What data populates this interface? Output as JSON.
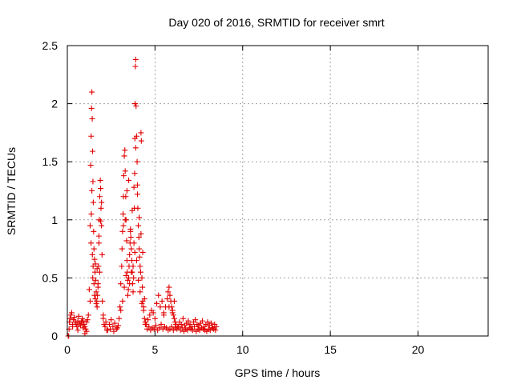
{
  "chart_data": {
    "type": "scatter",
    "title": "Day 020 of 2016, SRMTID for receiver smrt",
    "xlabel": "GPS time / hours",
    "ylabel": "SRMTID / TECUs",
    "xlim": [
      0,
      24
    ],
    "ylim": [
      0,
      2.5
    ],
    "xticks": [
      0,
      5,
      10,
      15,
      20
    ],
    "yticks": [
      0,
      0.5,
      1,
      1.5,
      2,
      2.5
    ],
    "xtick_labels": [
      "0",
      "5",
      "10",
      "15",
      "20"
    ],
    "ytick_labels": [
      "0",
      "0.5",
      "1",
      "1.5",
      "2",
      "2.5"
    ],
    "grid": true,
    "marker": "+",
    "color": "#e00000",
    "series": [
      {
        "name": "smrt",
        "x": [
          0.05,
          0.08,
          0.12,
          0.15,
          0.2,
          0.25,
          0.3,
          0.35,
          0.4,
          0.45,
          0.5,
          0.55,
          0.6,
          0.65,
          0.7,
          0.75,
          0.8,
          0.85,
          0.9,
          0.95,
          1.0,
          1.05,
          1.1,
          1.15,
          1.2,
          1.25,
          1.3,
          1.33,
          1.36,
          1.38,
          1.4,
          1.42,
          1.44,
          1.46,
          1.48,
          1.5,
          1.52,
          1.55,
          1.58,
          1.6,
          1.62,
          1.65,
          1.68,
          1.7,
          1.72,
          1.75,
          1.78,
          1.8,
          1.82,
          1.85,
          1.88,
          1.9,
          1.92,
          1.95,
          1.98,
          2.0,
          2.05,
          2.1,
          2.15,
          2.2,
          2.3,
          2.4,
          2.5,
          2.6,
          2.7,
          2.8,
          2.9,
          2.95,
          3.0,
          3.05,
          3.1,
          3.12,
          3.15,
          3.18,
          3.2,
          3.22,
          3.25,
          3.28,
          3.3,
          3.33,
          3.35,
          3.38,
          3.4,
          3.42,
          3.45,
          3.48,
          3.5,
          3.52,
          3.55,
          3.58,
          3.6,
          3.62,
          3.65,
          3.68,
          3.7,
          3.72,
          3.75,
          3.78,
          3.8,
          3.82,
          3.84,
          3.85,
          3.86,
          3.88,
          3.9,
          3.92,
          3.95,
          3.98,
          4.0,
          4.02,
          4.05,
          4.08,
          4.1,
          4.12,
          4.15,
          4.18,
          4.2,
          4.22,
          4.25,
          4.28,
          4.3,
          4.35,
          4.4,
          4.45,
          4.5,
          4.6,
          4.7,
          4.8,
          4.9,
          5.0,
          5.1,
          5.2,
          5.3,
          5.4,
          5.5,
          5.6,
          5.7,
          5.75,
          5.8,
          5.85,
          5.9,
          5.95,
          6.0,
          6.05,
          6.1,
          6.15,
          6.2,
          6.3,
          6.4,
          6.5,
          6.6,
          6.7,
          6.8,
          6.9,
          7.0,
          7.1,
          7.2,
          7.3,
          7.4,
          7.5,
          7.6,
          7.7,
          7.8,
          7.9,
          8.0,
          8.1,
          8.2,
          8.3,
          8.4,
          8.5,
          0.1,
          0.3,
          0.6,
          0.9,
          1.0,
          1.1,
          1.3,
          1.45,
          1.55,
          1.65,
          1.75,
          1.85,
          2.05,
          2.25,
          2.45,
          2.65,
          2.85,
          3.05,
          3.15,
          3.25,
          3.35,
          3.45,
          3.55,
          3.65,
          3.75,
          3.85,
          3.95,
          4.05,
          4.15,
          4.25,
          4.35,
          4.45,
          4.55,
          4.65,
          4.75,
          4.85,
          4.95,
          5.05,
          5.15,
          5.25,
          5.35,
          5.45,
          5.55,
          5.65,
          5.75,
          5.85,
          5.95,
          6.05,
          6.15,
          6.25,
          6.35,
          6.45,
          6.55,
          6.65,
          6.75,
          6.85,
          6.95,
          7.05,
          7.15,
          7.25,
          7.35,
          7.45,
          7.55,
          7.65,
          7.75,
          7.85,
          7.95,
          8.05,
          8.15,
          8.25,
          8.35,
          8.45,
          1.35,
          1.37,
          1.4,
          1.43,
          1.47,
          1.52,
          1.6,
          1.7,
          1.8,
          1.9,
          1.95,
          3.2,
          3.3,
          3.4,
          3.5,
          3.6,
          3.7,
          3.8,
          3.9,
          4.0,
          4.1,
          4.2,
          4.3,
          4.4,
          5.5,
          5.8,
          6.0,
          6.1
        ],
        "y": [
          0.0,
          0.0,
          0.12,
          0.15,
          0.18,
          0.2,
          0.1,
          0.14,
          0.16,
          0.12,
          0.1,
          0.08,
          0.13,
          0.17,
          0.11,
          0.09,
          0.12,
          0.15,
          0.13,
          0.1,
          0.08,
          0.06,
          0.12,
          0.14,
          0.18,
          0.4,
          0.95,
          1.47,
          1.72,
          1.96,
          2.1,
          1.87,
          1.59,
          1.33,
          1.15,
          0.9,
          0.75,
          0.66,
          0.55,
          0.62,
          0.48,
          0.38,
          0.3,
          0.25,
          0.35,
          0.45,
          0.6,
          0.8,
          1.0,
          1.2,
          1.34,
          1.27,
          1.1,
          0.95,
          0.7,
          0.3,
          0.18,
          0.1,
          0.08,
          0.12,
          0.05,
          0.1,
          0.14,
          0.08,
          0.11,
          0.06,
          0.09,
          0.15,
          0.25,
          0.45,
          0.6,
          0.75,
          0.9,
          1.05,
          1.2,
          1.38,
          1.55,
          1.6,
          1.42,
          1.2,
          1.0,
          0.82,
          0.65,
          0.55,
          0.48,
          0.4,
          0.5,
          0.6,
          0.7,
          0.8,
          0.9,
          0.85,
          0.75,
          0.65,
          0.55,
          0.45,
          0.38,
          0.5,
          0.8,
          1.1,
          1.4,
          1.7,
          2.0,
          2.32,
          2.38,
          1.98,
          1.72,
          1.5,
          1.3,
          1.1,
          0.95,
          0.85,
          0.75,
          0.68,
          0.6,
          0.55,
          1.75,
          1.68,
          0.5,
          0.42,
          0.3,
          0.22,
          0.15,
          0.12,
          0.1,
          0.14,
          0.18,
          0.22,
          0.2,
          0.15,
          0.28,
          0.35,
          0.25,
          0.3,
          0.2,
          0.25,
          0.32,
          0.38,
          0.42,
          0.35,
          0.3,
          0.25,
          0.2,
          0.18,
          0.15,
          0.12,
          0.1,
          0.08,
          0.12,
          0.1,
          0.15,
          0.09,
          0.11,
          0.13,
          0.1,
          0.08,
          0.12,
          0.14,
          0.1,
          0.09,
          0.11,
          0.13,
          0.08,
          0.1,
          0.12,
          0.09,
          0.11,
          0.07,
          0.1,
          0.08,
          0.06,
          0.08,
          0.05,
          0.07,
          0.02,
          0.04,
          0.3,
          0.5,
          0.35,
          0.28,
          0.42,
          0.55,
          0.15,
          0.05,
          0.06,
          0.04,
          0.07,
          0.22,
          0.3,
          0.42,
          0.52,
          0.35,
          0.45,
          0.55,
          0.6,
          0.72,
          0.65,
          0.48,
          0.38,
          0.28,
          0.25,
          0.1,
          0.06,
          0.08,
          0.05,
          0.07,
          0.06,
          0.09,
          0.05,
          0.07,
          0.1,
          0.06,
          0.08,
          0.07,
          0.05,
          0.06,
          0.08,
          0.05,
          0.07,
          0.06,
          0.08,
          0.05,
          0.07,
          0.04,
          0.06,
          0.05,
          0.07,
          0.06,
          0.05,
          0.08,
          0.04,
          0.06,
          0.05,
          0.07,
          0.06,
          0.05,
          0.04,
          0.06,
          0.05,
          0.07,
          0.06,
          0.05,
          0.8,
          1.05,
          1.25,
          0.7,
          0.6,
          0.45,
          0.32,
          0.58,
          0.86,
          0.99,
          1.15,
          0.95,
          1.0,
          1.25,
          1.34,
          0.92,
          1.08,
          1.28,
          1.62,
          1.22,
          1.02,
          0.88,
          0.72,
          0.32,
          0.18,
          0.25,
          0.22,
          0.3
        ]
      }
    ]
  }
}
